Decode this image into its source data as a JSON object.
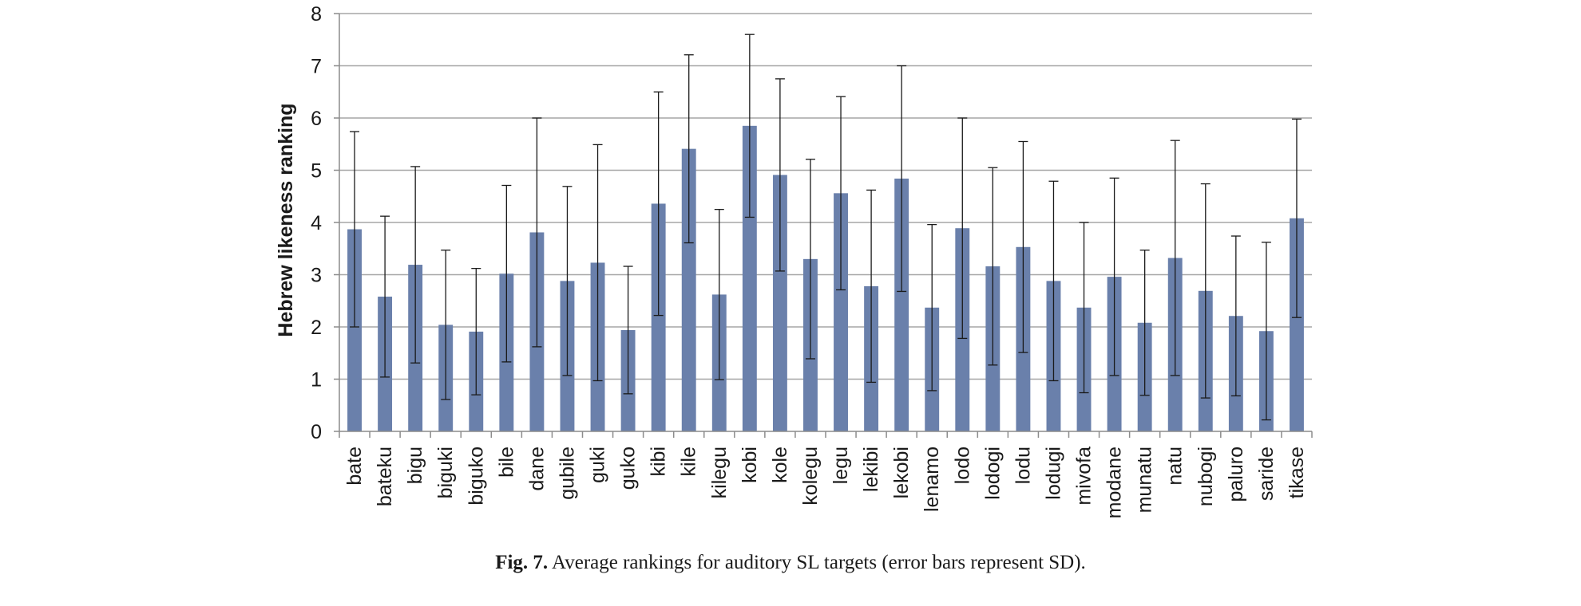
{
  "chart_data": {
    "type": "bar",
    "ylabel": "Hebrew likeness ranking",
    "xlabel": "",
    "ylim": [
      0,
      8
    ],
    "y_ticks": [
      0,
      1,
      2,
      3,
      4,
      5,
      6,
      7,
      8
    ],
    "grid": "horizontal",
    "bar_color": "#6a80ab",
    "error_bars": "SD",
    "categories": [
      "bate",
      "bateku",
      "bigu",
      "biguki",
      "biguko",
      "bile",
      "dane",
      "gubile",
      "guki",
      "guko",
      "kibi",
      "kile",
      "kilegu",
      "kobi",
      "kole",
      "kolegu",
      "legu",
      "lekibi",
      "lekobi",
      "lenamo",
      "lodo",
      "lodogi",
      "lodu",
      "lodugi",
      "mivofa",
      "modane",
      "munatu",
      "natu",
      "nubogi",
      "paluro",
      "saride",
      "tikase"
    ],
    "values": [
      3.87,
      2.58,
      3.19,
      2.04,
      1.91,
      3.02,
      3.81,
      2.88,
      3.23,
      1.94,
      4.36,
      5.41,
      2.62,
      5.85,
      4.91,
      3.3,
      4.56,
      2.78,
      4.84,
      2.37,
      3.89,
      3.16,
      3.53,
      2.88,
      2.37,
      2.96,
      2.08,
      3.32,
      2.69,
      2.21,
      1.92,
      4.08
    ],
    "sd": [
      1.87,
      1.54,
      1.88,
      1.43,
      1.21,
      1.69,
      2.19,
      1.81,
      2.26,
      1.22,
      2.14,
      1.8,
      1.63,
      1.75,
      1.84,
      1.91,
      1.85,
      1.84,
      2.16,
      1.59,
      2.11,
      1.89,
      2.02,
      1.91,
      1.63,
      1.89,
      1.39,
      2.25,
      2.05,
      1.53,
      1.7,
      1.9
    ]
  },
  "caption": {
    "label": "Fig. 7.",
    "text": "Average rankings for auditory SL targets (error bars represent SD)."
  }
}
